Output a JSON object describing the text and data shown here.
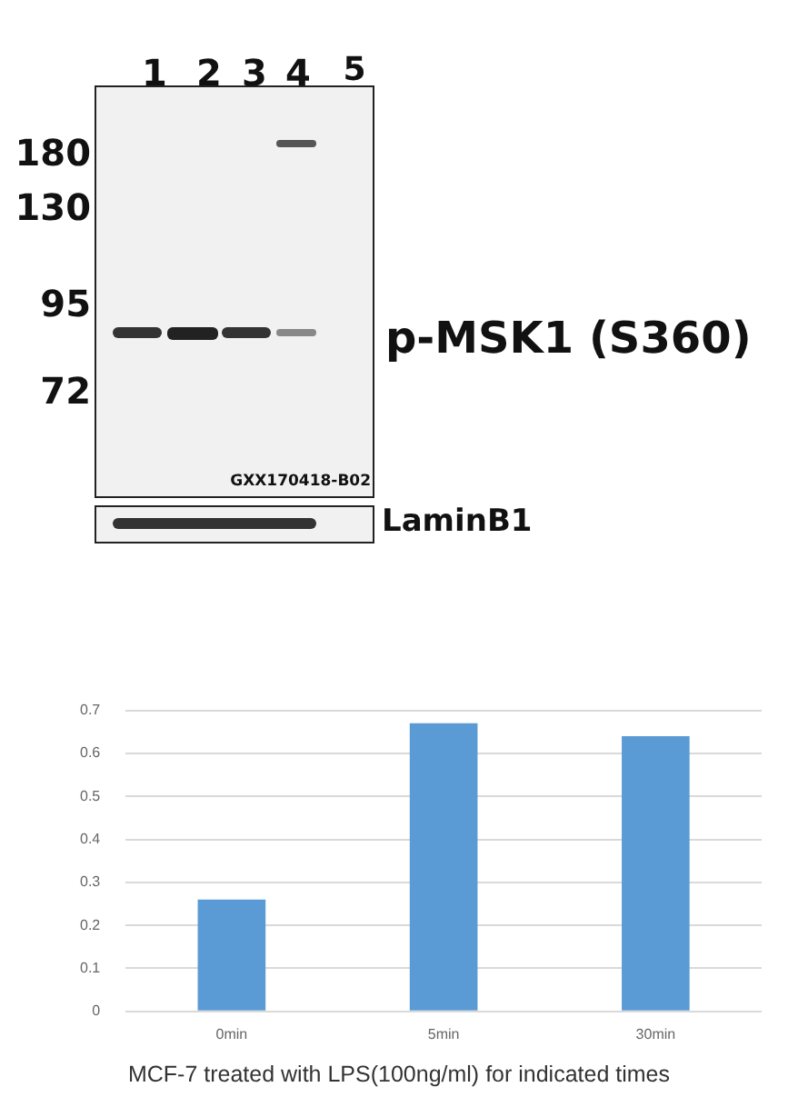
{
  "chart_data": {
    "type": "bar",
    "categories": [
      "0min",
      "5min",
      "30min"
    ],
    "values": [
      0.26,
      0.67,
      0.64
    ],
    "color": "#5b9bd5",
    "ylim": [
      0,
      0.7
    ],
    "yticks": [
      0,
      0.1,
      0.2,
      0.3,
      0.4,
      0.5,
      0.6,
      0.7
    ],
    "grid": "y",
    "legend": false,
    "xlabel": "MCF-7 treated with LPS(100ng/ml) for indicated times",
    "annotations": [
      "1",
      "2",
      "3",
      "4",
      "5",
      "180",
      "130",
      "95",
      "72",
      "p-MSK1 (S360)",
      "GXX170418-B02",
      "LaminB1"
    ]
  }
}
